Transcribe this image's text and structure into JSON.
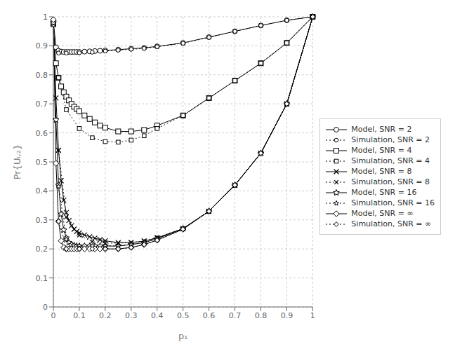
{
  "chart_data": {
    "type": "line",
    "x_label": "p₁",
    "y_label": "Pr{Uᵢ,₂}",
    "xlim": [
      0,
      1.0
    ],
    "ylim": [
      0,
      1.0
    ],
    "xticks": [
      0,
      0.1,
      0.2,
      0.3,
      0.4,
      0.5,
      0.6,
      0.7,
      0.8,
      0.9,
      1
    ],
    "yticks": [
      0,
      0.1,
      0.2,
      0.3,
      0.4,
      0.5,
      0.6,
      0.7,
      0.8,
      0.9,
      1
    ],
    "grid": true,
    "legend": "right",
    "series": [
      {
        "name": "Model, SNR = 2",
        "color": "#000000",
        "marker": "circle",
        "line_style": "solid",
        "x": [
          0,
          0.01,
          0.02,
          0.03,
          0.04,
          0.05,
          0.06,
          0.07,
          0.08,
          0.09,
          0.1,
          0.12,
          0.14,
          0.16,
          0.18,
          0.2,
          0.25,
          0.3,
          0.35,
          0.4,
          0.5,
          0.6,
          0.7,
          0.8,
          0.9,
          1.0
        ],
        "values": [
          0.985,
          0.895,
          0.883,
          0.88,
          0.879,
          0.879,
          0.879,
          0.879,
          0.879,
          0.879,
          0.879,
          0.88,
          0.881,
          0.882,
          0.883,
          0.884,
          0.887,
          0.89,
          0.893,
          0.898,
          0.91,
          0.93,
          0.95,
          0.97,
          0.988,
          1.0
        ]
      },
      {
        "name": "Simulation, SNR = 2",
        "color": "#000000",
        "marker": "circle",
        "line_style": "dotted",
        "x": [
          0.02,
          0.05,
          0.1,
          0.15,
          0.2,
          0.25,
          0.3,
          0.35,
          0.4,
          0.5,
          0.6,
          0.7,
          0.8,
          0.9,
          1.0
        ],
        "values": [
          0.875,
          0.875,
          0.876,
          0.878,
          0.882,
          0.885,
          0.888,
          0.891,
          0.897,
          0.909,
          0.929,
          0.95,
          0.97,
          0.988,
          1.0
        ]
      },
      {
        "name": "Model, SNR = 4",
        "color": "#000000",
        "marker": "square",
        "line_style": "solid",
        "x": [
          0,
          0.01,
          0.02,
          0.03,
          0.04,
          0.05,
          0.06,
          0.07,
          0.08,
          0.09,
          0.1,
          0.12,
          0.14,
          0.16,
          0.18,
          0.2,
          0.25,
          0.3,
          0.35,
          0.4,
          0.5,
          0.6,
          0.7,
          0.8,
          0.9,
          1.0
        ],
        "values": [
          0.975,
          0.84,
          0.79,
          0.76,
          0.74,
          0.725,
          0.712,
          0.7,
          0.69,
          0.682,
          0.675,
          0.66,
          0.648,
          0.636,
          0.625,
          0.618,
          0.605,
          0.605,
          0.61,
          0.625,
          0.66,
          0.72,
          0.78,
          0.84,
          0.91,
          1.0
        ]
      },
      {
        "name": "Simulation, SNR = 4",
        "color": "#000000",
        "marker": "square",
        "line_style": "dotted",
        "x": [
          0.02,
          0.05,
          0.1,
          0.15,
          0.2,
          0.25,
          0.3,
          0.35,
          0.4,
          0.5,
          0.6,
          0.7,
          0.8,
          0.9,
          1.0
        ],
        "values": [
          0.79,
          0.68,
          0.615,
          0.583,
          0.57,
          0.568,
          0.575,
          0.59,
          0.615,
          0.66,
          0.72,
          0.78,
          0.84,
          0.91,
          1.0
        ]
      },
      {
        "name": "Model, SNR = 8",
        "color": "#000000",
        "marker": "x",
        "line_style": "solid",
        "x": [
          0,
          0.01,
          0.02,
          0.03,
          0.04,
          0.05,
          0.06,
          0.07,
          0.08,
          0.09,
          0.1,
          0.12,
          0.14,
          0.16,
          0.18,
          0.2,
          0.25,
          0.3,
          0.35,
          0.4,
          0.5,
          0.6,
          0.7,
          0.8,
          0.9,
          1.0
        ],
        "values": [
          0.975,
          0.72,
          0.54,
          0.435,
          0.368,
          0.325,
          0.298,
          0.28,
          0.268,
          0.26,
          0.255,
          0.248,
          0.242,
          0.237,
          0.232,
          0.228,
          0.222,
          0.222,
          0.227,
          0.238,
          0.27,
          0.33,
          0.42,
          0.53,
          0.7,
          1.0
        ]
      },
      {
        "name": "Simulation, SNR = 8",
        "color": "#000000",
        "marker": "x",
        "line_style": "dotted",
        "x": [
          0.02,
          0.05,
          0.1,
          0.15,
          0.2,
          0.25,
          0.3,
          0.35,
          0.4,
          0.5,
          0.6,
          0.7,
          0.8,
          0.9,
          1.0
        ],
        "values": [
          0.54,
          0.31,
          0.247,
          0.225,
          0.22,
          0.22,
          0.222,
          0.228,
          0.24,
          0.27,
          0.33,
          0.42,
          0.53,
          0.7,
          1.0
        ]
      },
      {
        "name": "Model, SNR = 16",
        "color": "#000000",
        "marker": "star",
        "line_style": "solid",
        "x": [
          0,
          0.01,
          0.02,
          0.03,
          0.04,
          0.05,
          0.06,
          0.07,
          0.08,
          0.09,
          0.1,
          0.12,
          0.14,
          0.16,
          0.18,
          0.2,
          0.25,
          0.3,
          0.35,
          0.4,
          0.5,
          0.6,
          0.7,
          0.8,
          0.9,
          1.0
        ],
        "values": [
          0.98,
          0.645,
          0.42,
          0.32,
          0.265,
          0.238,
          0.222,
          0.215,
          0.212,
          0.21,
          0.21,
          0.21,
          0.21,
          0.21,
          0.21,
          0.21,
          0.21,
          0.215,
          0.222,
          0.235,
          0.27,
          0.33,
          0.42,
          0.53,
          0.7,
          1.0
        ]
      },
      {
        "name": "Simulation, SNR = 16",
        "color": "#000000",
        "marker": "star",
        "line_style": "dotted",
        "x": [
          0.02,
          0.05,
          0.1,
          0.15,
          0.2,
          0.25,
          0.3,
          0.35,
          0.4,
          0.5,
          0.6,
          0.7,
          0.8,
          0.9,
          1.0
        ],
        "values": [
          0.415,
          0.233,
          0.21,
          0.21,
          0.21,
          0.21,
          0.215,
          0.222,
          0.235,
          0.27,
          0.33,
          0.42,
          0.53,
          0.7,
          1.0
        ]
      },
      {
        "name": "Model, SNR = ∞",
        "color": "#000000",
        "marker": "diamond",
        "line_style": "solid",
        "x": [
          0,
          0.01,
          0.02,
          0.03,
          0.04,
          0.05,
          0.06,
          0.07,
          0.08,
          0.09,
          0.1,
          0.12,
          0.14,
          0.16,
          0.18,
          0.2,
          0.25,
          0.3,
          0.35,
          0.4,
          0.5,
          0.6,
          0.7,
          0.8,
          0.9,
          1.0
        ],
        "values": [
          0.99,
          0.495,
          0.295,
          0.228,
          0.205,
          0.2,
          0.2,
          0.2,
          0.2,
          0.2,
          0.2,
          0.2,
          0.2,
          0.2,
          0.2,
          0.2,
          0.2,
          0.205,
          0.215,
          0.23,
          0.268,
          0.33,
          0.42,
          0.53,
          0.7,
          1.0
        ]
      },
      {
        "name": "Simulation, SNR = ∞",
        "color": "#000000",
        "marker": "diamond",
        "line_style": "dotted",
        "x": [
          0.02,
          0.05,
          0.1,
          0.15,
          0.2,
          0.25,
          0.3,
          0.35,
          0.4,
          0.5,
          0.6,
          0.7,
          0.8,
          0.9,
          1.0
        ],
        "values": [
          0.295,
          0.2,
          0.2,
          0.2,
          0.2,
          0.2,
          0.205,
          0.215,
          0.23,
          0.268,
          0.33,
          0.42,
          0.53,
          0.7,
          1.0
        ]
      }
    ]
  }
}
